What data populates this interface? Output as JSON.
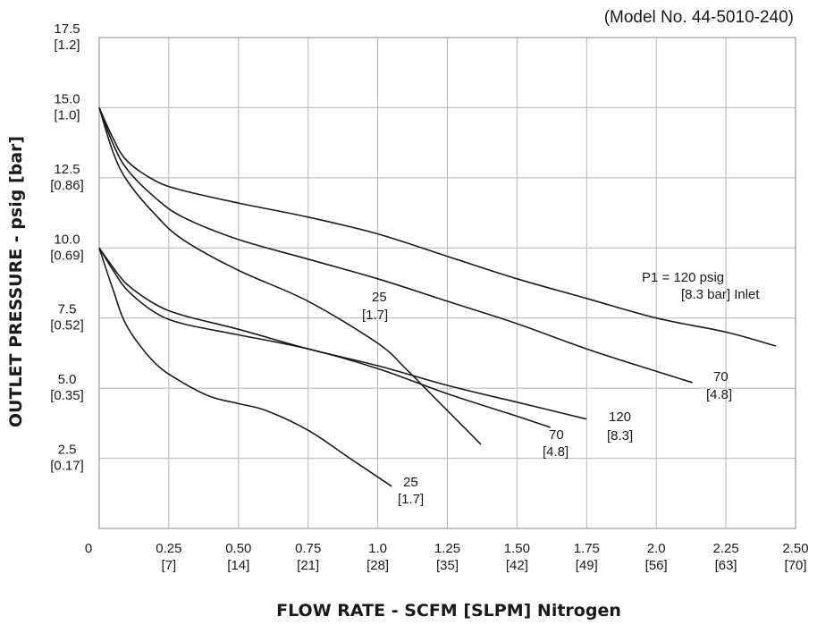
{
  "chart_data": {
    "type": "line",
    "model_label": "(Model No. 44-5010-240)",
    "xlabel": "FLOW RATE - SCFM [SLPM] Nitrogen",
    "ylabel": "OUTLET PRESSURE - psig [bar]",
    "xlim": [
      0,
      2.5
    ],
    "ylim": [
      0,
      17.5
    ],
    "grid": true,
    "x_ticks": [
      {
        "value": 0,
        "label": "0",
        "sub": ""
      },
      {
        "value": 0.25,
        "label": "0.25",
        "sub": "[7]"
      },
      {
        "value": 0.5,
        "label": "0.50",
        "sub": "[14]"
      },
      {
        "value": 0.75,
        "label": "0.75",
        "sub": "[21]"
      },
      {
        "value": 1.0,
        "label": "1.0",
        "sub": "[28]"
      },
      {
        "value": 1.25,
        "label": "1.25",
        "sub": "[35]"
      },
      {
        "value": 1.5,
        "label": "1.50",
        "sub": "[42]"
      },
      {
        "value": 1.75,
        "label": "1.75",
        "sub": "[49]"
      },
      {
        "value": 2.0,
        "label": "2.0",
        "sub": "[56]"
      },
      {
        "value": 2.25,
        "label": "2.25",
        "sub": "[63]"
      },
      {
        "value": 2.5,
        "label": "2.50",
        "sub": "[70]"
      }
    ],
    "y_ticks": [
      {
        "value": 2.5,
        "label": "2.5",
        "sub": "[0.17]"
      },
      {
        "value": 5.0,
        "label": "5.0",
        "sub": "[0.35]"
      },
      {
        "value": 7.5,
        "label": "7.5",
        "sub": "[0.52]"
      },
      {
        "value": 10.0,
        "label": "10.0",
        "sub": "[0.69]"
      },
      {
        "value": 12.5,
        "label": "12.5",
        "sub": "[0.86]"
      },
      {
        "value": 15.0,
        "label": "15.0",
        "sub": "[1.0]"
      },
      {
        "value": 17.5,
        "label": "17.5",
        "sub": "[1.2]"
      }
    ],
    "series": [
      {
        "name": "P1 = 120 psig [8.3 bar] Inlet",
        "set_pressure": 15,
        "label_lines": [
          "P1 = 120 psig",
          "[8.3 bar] Inlet"
        ],
        "x": [
          0,
          0.05,
          0.1,
          0.2,
          0.3,
          0.5,
          0.75,
          1.0,
          1.25,
          1.5,
          1.75,
          2.0,
          2.25,
          2.43
        ],
        "y": [
          15.0,
          13.9,
          13.1,
          12.4,
          12.05,
          11.6,
          11.1,
          10.5,
          9.7,
          8.9,
          8.2,
          7.5,
          7.0,
          6.5
        ]
      },
      {
        "name": "70 [4.8]",
        "set_pressure": 15,
        "label_lines": [
          "70",
          "[4.8]"
        ],
        "x": [
          0,
          0.05,
          0.1,
          0.2,
          0.3,
          0.5,
          0.75,
          1.0,
          1.25,
          1.5,
          1.75,
          2.0,
          2.13
        ],
        "y": [
          15.0,
          13.7,
          12.8,
          11.8,
          11.1,
          10.3,
          9.6,
          8.9,
          8.1,
          7.3,
          6.4,
          5.6,
          5.2
        ]
      },
      {
        "name": "25 [1.7]",
        "set_pressure": 15,
        "label_lines": [
          "25",
          "[1.7]"
        ],
        "x": [
          0,
          0.05,
          0.1,
          0.2,
          0.3,
          0.5,
          0.75,
          1.0,
          1.1,
          1.2,
          1.3,
          1.37
        ],
        "y": [
          15.0,
          13.4,
          12.4,
          11.2,
          10.3,
          9.2,
          8.1,
          6.6,
          5.7,
          4.7,
          3.7,
          3.0
        ]
      },
      {
        "name": "120 [8.3]",
        "set_pressure": 10,
        "label_lines": [
          "120",
          "[8.3]"
        ],
        "x": [
          0,
          0.05,
          0.1,
          0.2,
          0.3,
          0.5,
          0.75,
          1.0,
          1.25,
          1.5,
          1.75
        ],
        "y": [
          10.0,
          9.3,
          8.7,
          8.0,
          7.6,
          7.1,
          6.4,
          5.8,
          5.1,
          4.5,
          3.9
        ]
      },
      {
        "name": "70 [4.8]",
        "set_pressure": 10,
        "label_lines": [
          "70",
          "[4.8]"
        ],
        "x": [
          0,
          0.05,
          0.1,
          0.2,
          0.3,
          0.5,
          0.75,
          1.0,
          1.25,
          1.5,
          1.62
        ],
        "y": [
          10.0,
          9.2,
          8.5,
          7.7,
          7.3,
          6.9,
          6.4,
          5.7,
          4.8,
          4.0,
          3.6
        ]
      },
      {
        "name": "25 [1.7]",
        "set_pressure": 10,
        "label_lines": [
          "25",
          "[1.7]"
        ],
        "x": [
          0,
          0.05,
          0.1,
          0.2,
          0.3,
          0.4,
          0.5,
          0.6,
          0.75,
          0.9,
          1.05
        ],
        "y": [
          10.0,
          8.5,
          7.2,
          5.9,
          5.2,
          4.7,
          4.45,
          4.2,
          3.5,
          2.5,
          1.5
        ]
      }
    ]
  }
}
